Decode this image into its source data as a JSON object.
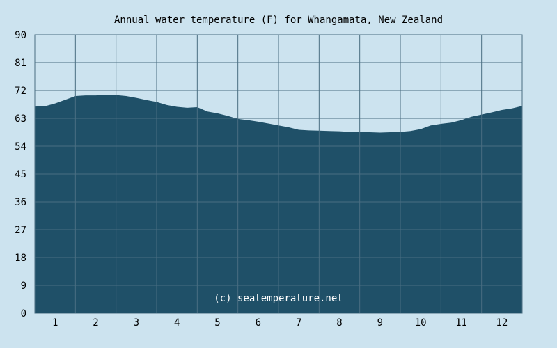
{
  "chart_data": {
    "type": "area",
    "title": "Annual water temperature (F) for Whangamata, New Zealand",
    "xlabel": "",
    "ylabel": "",
    "ylim": [
      0,
      90
    ],
    "yticks": [
      "0",
      "9",
      "18",
      "27",
      "36",
      "45",
      "54",
      "63",
      "72",
      "81",
      "90"
    ],
    "categories": [
      "1",
      "2",
      "3",
      "4",
      "5",
      "6",
      "7",
      "8",
      "9",
      "10",
      "11",
      "12"
    ],
    "grid": true,
    "watermark": "(c) seatemperature.net",
    "series": [
      {
        "x": [
          0.5,
          0.75,
          1.0,
          1.25,
          1.5,
          1.75,
          2.0,
          2.25,
          2.5,
          2.75,
          3.0,
          3.25,
          3.5,
          3.75,
          4.0,
          4.25,
          4.5,
          4.75,
          5.0,
          5.25,
          5.5,
          5.75,
          6.0,
          6.25,
          6.5,
          6.75,
          7.0,
          7.25,
          7.5,
          7.75,
          8.0,
          8.25,
          8.5,
          8.75,
          9.0,
          9.25,
          9.5,
          9.75,
          10.0,
          10.25,
          10.5,
          10.75,
          11.0,
          11.25,
          11.5,
          11.75,
          12.0,
          12.25,
          12.5
        ],
        "values": [
          66.8,
          66.9,
          67.8,
          69.0,
          70.2,
          70.4,
          70.4,
          70.6,
          70.5,
          70.2,
          69.6,
          68.9,
          68.3,
          67.3,
          66.7,
          66.4,
          66.6,
          65.2,
          64.6,
          63.8,
          62.8,
          62.4,
          61.9,
          61.3,
          60.7,
          60.1,
          59.3,
          59.1,
          59.0,
          58.9,
          58.8,
          58.6,
          58.5,
          58.5,
          58.4,
          58.5,
          58.6,
          58.9,
          59.5,
          60.7,
          61.2,
          61.6,
          62.4,
          63.5,
          64.2,
          64.9,
          65.7,
          66.2,
          67.0
        ]
      }
    ],
    "colors": {
      "background": "#cce3ef",
      "plot_background": "#cce3ef",
      "area_fill": "#1f5068",
      "grid": "#4a6e82",
      "text": "#000000",
      "watermark": "#ffffff"
    }
  }
}
